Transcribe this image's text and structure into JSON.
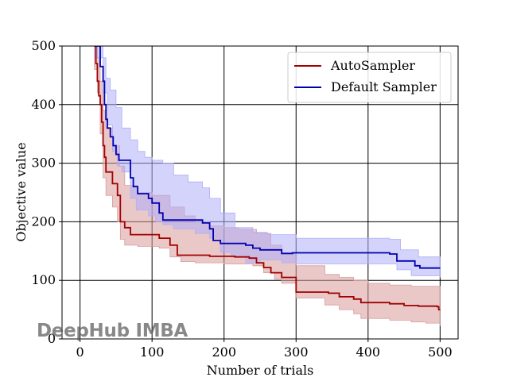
{
  "chart_data": {
    "type": "line",
    "xlabel": "Number of trials",
    "ylabel": "Objective value",
    "xlim": [
      -25,
      525
    ],
    "ylim": [
      0,
      500
    ],
    "xticks": [
      0,
      100,
      200,
      300,
      400,
      500
    ],
    "yticks": [
      0,
      100,
      200,
      300,
      400,
      500
    ],
    "grid": true,
    "legend_position": "top-right",
    "series": [
      {
        "name": "AutoSampler",
        "color": "#a00000",
        "band_color": "#d89b9b",
        "steps": [
          [
            20,
            500
          ],
          [
            22,
            470
          ],
          [
            24,
            440
          ],
          [
            26,
            415
          ],
          [
            28,
            400
          ],
          [
            30,
            370
          ],
          [
            32,
            330
          ],
          [
            34,
            310
          ],
          [
            36,
            285
          ],
          [
            45,
            265
          ],
          [
            52,
            245
          ],
          [
            56,
            200
          ],
          [
            62,
            190
          ],
          [
            70,
            178
          ],
          [
            110,
            172
          ],
          [
            125,
            160
          ],
          [
            135,
            143
          ],
          [
            180,
            141
          ],
          [
            215,
            140
          ],
          [
            235,
            138
          ],
          [
            245,
            130
          ],
          [
            255,
            122
          ],
          [
            265,
            113
          ],
          [
            280,
            105
          ],
          [
            300,
            80
          ],
          [
            345,
            78
          ],
          [
            360,
            72
          ],
          [
            380,
            68
          ],
          [
            390,
            62
          ],
          [
            430,
            60
          ],
          [
            450,
            57
          ],
          [
            470,
            56
          ],
          [
            496,
            55
          ],
          [
            498,
            50
          ],
          [
            500,
            50
          ]
        ],
        "upper": [
          [
            20,
            500
          ],
          [
            24,
            480
          ],
          [
            28,
            440
          ],
          [
            32,
            390
          ],
          [
            36,
            360
          ],
          [
            45,
            330
          ],
          [
            55,
            295
          ],
          [
            62,
            262
          ],
          [
            80,
            250
          ],
          [
            100,
            245
          ],
          [
            125,
            225
          ],
          [
            145,
            210
          ],
          [
            160,
            200
          ],
          [
            180,
            193
          ],
          [
            200,
            190
          ],
          [
            220,
            187
          ],
          [
            245,
            180
          ],
          [
            265,
            160
          ],
          [
            280,
            145
          ],
          [
            300,
            125
          ],
          [
            340,
            110
          ],
          [
            360,
            105
          ],
          [
            380,
            100
          ],
          [
            400,
            95
          ],
          [
            430,
            92
          ],
          [
            460,
            90
          ],
          [
            500,
            87
          ]
        ],
        "lower": [
          [
            20,
            460
          ],
          [
            24,
            420
          ],
          [
            28,
            350
          ],
          [
            32,
            275
          ],
          [
            36,
            245
          ],
          [
            45,
            225
          ],
          [
            52,
            200
          ],
          [
            56,
            170
          ],
          [
            62,
            160
          ],
          [
            80,
            158
          ],
          [
            110,
            155
          ],
          [
            125,
            140
          ],
          [
            140,
            132
          ],
          [
            160,
            130
          ],
          [
            200,
            128
          ],
          [
            240,
            125
          ],
          [
            255,
            113
          ],
          [
            270,
            102
          ],
          [
            280,
            95
          ],
          [
            300,
            70
          ],
          [
            340,
            58
          ],
          [
            360,
            50
          ],
          [
            380,
            43
          ],
          [
            390,
            35
          ],
          [
            430,
            32
          ],
          [
            460,
            29
          ],
          [
            480,
            27
          ],
          [
            500,
            22
          ]
        ]
      },
      {
        "name": "Default Sampler",
        "color": "#0000b0",
        "band_color": "#aeaefa",
        "steps": [
          [
            20,
            500
          ],
          [
            28,
            465
          ],
          [
            32,
            440
          ],
          [
            34,
            400
          ],
          [
            36,
            375
          ],
          [
            38,
            360
          ],
          [
            42,
            345
          ],
          [
            46,
            330
          ],
          [
            50,
            315
          ],
          [
            54,
            305
          ],
          [
            70,
            275
          ],
          [
            74,
            260
          ],
          [
            80,
            248
          ],
          [
            95,
            240
          ],
          [
            100,
            232
          ],
          [
            110,
            215
          ],
          [
            115,
            203
          ],
          [
            170,
            198
          ],
          [
            180,
            188
          ],
          [
            185,
            168
          ],
          [
            195,
            163
          ],
          [
            230,
            160
          ],
          [
            240,
            155
          ],
          [
            250,
            152
          ],
          [
            280,
            146
          ],
          [
            295,
            147
          ],
          [
            430,
            145
          ],
          [
            440,
            133
          ],
          [
            465,
            125
          ],
          [
            472,
            121
          ],
          [
            500,
            121
          ]
        ],
        "upper": [
          [
            20,
            500
          ],
          [
            32,
            480
          ],
          [
            36,
            445
          ],
          [
            42,
            425
          ],
          [
            50,
            395
          ],
          [
            58,
            360
          ],
          [
            70,
            340
          ],
          [
            80,
            320
          ],
          [
            90,
            310
          ],
          [
            100,
            305
          ],
          [
            115,
            300
          ],
          [
            130,
            280
          ],
          [
            150,
            268
          ],
          [
            170,
            258
          ],
          [
            180,
            240
          ],
          [
            195,
            215
          ],
          [
            215,
            190
          ],
          [
            240,
            182
          ],
          [
            260,
            178
          ],
          [
            300,
            172
          ],
          [
            350,
            172
          ],
          [
            430,
            170
          ],
          [
            445,
            152
          ],
          [
            470,
            140
          ],
          [
            500,
            140
          ]
        ],
        "lower": [
          [
            20,
            480
          ],
          [
            32,
            420
          ],
          [
            38,
            365
          ],
          [
            45,
            320
          ],
          [
            52,
            295
          ],
          [
            58,
            285
          ],
          [
            70,
            240
          ],
          [
            78,
            220
          ],
          [
            95,
            210
          ],
          [
            105,
            200
          ],
          [
            115,
            195
          ],
          [
            130,
            188
          ],
          [
            160,
            180
          ],
          [
            180,
            172
          ],
          [
            195,
            148
          ],
          [
            210,
            140
          ],
          [
            230,
            130
          ],
          [
            250,
            135
          ],
          [
            280,
            130
          ],
          [
            300,
            128
          ],
          [
            350,
            128
          ],
          [
            430,
            128
          ],
          [
            440,
            118
          ],
          [
            460,
            108
          ],
          [
            500,
            105
          ]
        ]
      }
    ]
  },
  "watermark": "DeepHub IMBA"
}
